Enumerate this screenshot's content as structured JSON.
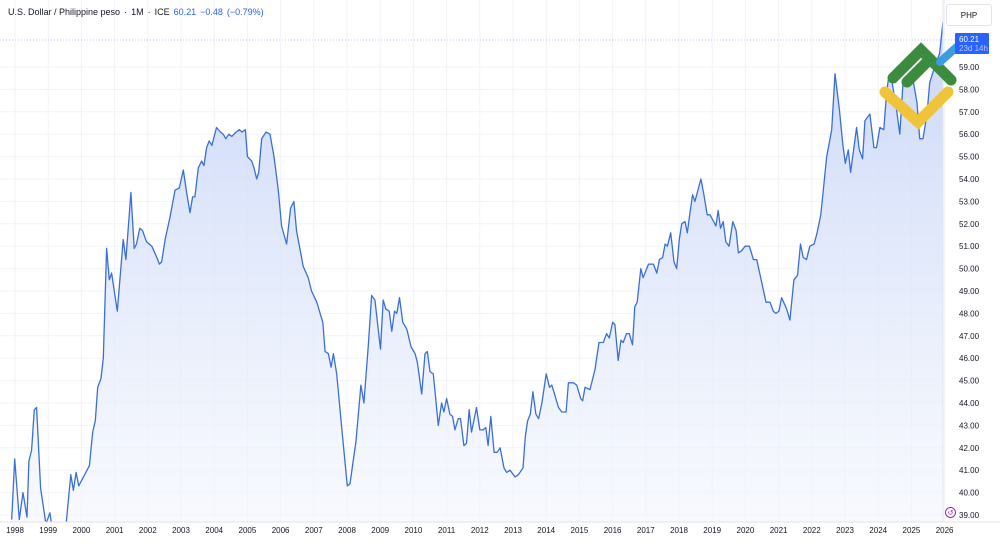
{
  "header": {
    "symbol_title": "U.S. Dollar / Philippine peso",
    "sep1": "·",
    "interval": "1M",
    "sep2": "·",
    "exchange": "ICE",
    "last_price": "60.21",
    "change": "−0.48",
    "change_pct": "(−0.79%)"
  },
  "price_scale": {
    "currency": "PHP",
    "last_price_label": "60.21",
    "countdown_label": "23d 14h"
  },
  "event_marker": {
    "icon": "dividend-event-icon",
    "glyph": "↺"
  },
  "colors": {
    "line": "#3a6fd8",
    "fill_top": "#c7d5f7",
    "fill_bottom": "#f3f6fd",
    "grid": "#f0f3fa",
    "accent": "#2962ff",
    "axis_text": "#131722",
    "logo_green": "#3b8c3e",
    "logo_yellow": "#f0c43a",
    "logo_blue": "#3d9be0"
  },
  "chart_data": {
    "type": "area",
    "title": "U.S. Dollar / Philippine peso · 1M · ICE",
    "xlabel": "",
    "ylabel": "PHP",
    "ylim": [
      38.6,
      61.2
    ],
    "grid": true,
    "legend_position": "top-left",
    "last_value": 60.21,
    "change": -0.48,
    "change_pct": -0.79,
    "x_ticks": [
      "1998",
      "1999",
      "2000",
      "2001",
      "2002",
      "2003",
      "2004",
      "2005",
      "2006",
      "2007",
      "2008",
      "2009",
      "2010",
      "2011",
      "2012",
      "2013",
      "2014",
      "2015",
      "2016",
      "2017",
      "2018",
      "2019",
      "2020",
      "2021",
      "2022",
      "2023",
      "2024",
      "2025",
      "2026"
    ],
    "y_ticks": [
      "39.00",
      "40.00",
      "41.00",
      "42.00",
      "43.00",
      "44.00",
      "45.00",
      "46.00",
      "47.00",
      "48.00",
      "49.00",
      "50.00",
      "51.00",
      "52.00",
      "53.00",
      "54.00",
      "55.00",
      "56.00",
      "57.00",
      "58.00",
      "59.00"
    ],
    "series": [
      {
        "name": "USD/PHP",
        "points": [
          [
            1997.9,
            38.8
          ],
          [
            1997.99,
            41.5
          ],
          [
            1998.13,
            38.8
          ],
          [
            1998.24,
            40.0
          ],
          [
            1998.36,
            38.9
          ],
          [
            1998.42,
            41.4
          ],
          [
            1998.5,
            41.9
          ],
          [
            1998.58,
            43.7
          ],
          [
            1998.65,
            43.8
          ],
          [
            1998.77,
            40.2
          ],
          [
            1998.93,
            38.6
          ],
          [
            1999.05,
            39.1
          ],
          [
            1999.1,
            38.6
          ],
          [
            1999.54,
            38.6
          ],
          [
            1999.68,
            40.8
          ],
          [
            1999.76,
            40.1
          ],
          [
            1999.84,
            40.9
          ],
          [
            1999.92,
            40.3
          ],
          [
            2000.24,
            41.2
          ],
          [
            2000.34,
            42.7
          ],
          [
            2000.42,
            43.2
          ],
          [
            2000.49,
            44.7
          ],
          [
            2000.59,
            45.1
          ],
          [
            2000.66,
            46.0
          ],
          [
            2000.76,
            50.9
          ],
          [
            2000.84,
            49.5
          ],
          [
            2000.91,
            49.8
          ],
          [
            2001.08,
            48.1
          ],
          [
            2001.26,
            51.3
          ],
          [
            2001.34,
            50.4
          ],
          [
            2001.49,
            53.4
          ],
          [
            2001.59,
            50.9
          ],
          [
            2001.66,
            51.1
          ],
          [
            2001.76,
            51.8
          ],
          [
            2001.84,
            51.7
          ],
          [
            2001.96,
            51.2
          ],
          [
            2002.12,
            51.0
          ],
          [
            2002.27,
            50.5
          ],
          [
            2002.35,
            50.2
          ],
          [
            2002.42,
            50.3
          ],
          [
            2002.52,
            51.3
          ],
          [
            2002.67,
            52.3
          ],
          [
            2002.82,
            53.5
          ],
          [
            2002.95,
            53.6
          ],
          [
            2003.07,
            54.4
          ],
          [
            2003.17,
            53.4
          ],
          [
            2003.27,
            52.5
          ],
          [
            2003.35,
            53.2
          ],
          [
            2003.42,
            53.2
          ],
          [
            2003.52,
            54.5
          ],
          [
            2003.62,
            54.8
          ],
          [
            2003.69,
            54.6
          ],
          [
            2003.77,
            55.4
          ],
          [
            2003.85,
            55.7
          ],
          [
            2003.93,
            55.5
          ],
          [
            2004.07,
            56.3
          ],
          [
            2004.19,
            56.1
          ],
          [
            2004.27,
            56.0
          ],
          [
            2004.35,
            55.8
          ],
          [
            2004.44,
            56.0
          ],
          [
            2004.53,
            55.9
          ],
          [
            2004.66,
            56.1
          ],
          [
            2004.76,
            56.2
          ],
          [
            2004.84,
            56.1
          ],
          [
            2004.94,
            56.2
          ],
          [
            2005.0,
            55.0
          ],
          [
            2005.13,
            54.8
          ],
          [
            2005.2,
            54.5
          ],
          [
            2005.28,
            54.0
          ],
          [
            2005.34,
            54.3
          ],
          [
            2005.43,
            55.8
          ],
          [
            2005.56,
            56.1
          ],
          [
            2005.68,
            56.0
          ],
          [
            2005.8,
            55.0
          ],
          [
            2005.93,
            53.5
          ],
          [
            2006.03,
            51.9
          ],
          [
            2006.18,
            51.1
          ],
          [
            2006.3,
            52.7
          ],
          [
            2006.4,
            53.0
          ],
          [
            2006.48,
            51.7
          ],
          [
            2006.68,
            50.1
          ],
          [
            2006.83,
            49.6
          ],
          [
            2006.93,
            49.0
          ],
          [
            2007.09,
            48.5
          ],
          [
            2007.27,
            47.6
          ],
          [
            2007.34,
            46.3
          ],
          [
            2007.44,
            46.2
          ],
          [
            2007.52,
            45.6
          ],
          [
            2007.59,
            46.2
          ],
          [
            2007.69,
            45.3
          ],
          [
            2007.84,
            42.9
          ],
          [
            2008.01,
            40.3
          ],
          [
            2008.09,
            40.4
          ],
          [
            2008.27,
            42.3
          ],
          [
            2008.42,
            44.8
          ],
          [
            2008.51,
            44.0
          ],
          [
            2008.64,
            46.5
          ],
          [
            2008.74,
            48.8
          ],
          [
            2008.84,
            48.6
          ],
          [
            2009.01,
            46.4
          ],
          [
            2009.09,
            48.6
          ],
          [
            2009.17,
            48.2
          ],
          [
            2009.27,
            48.1
          ],
          [
            2009.35,
            47.2
          ],
          [
            2009.43,
            48.1
          ],
          [
            2009.5,
            48.0
          ],
          [
            2009.58,
            48.7
          ],
          [
            2009.68,
            47.6
          ],
          [
            2009.8,
            47.3
          ],
          [
            2009.93,
            46.5
          ],
          [
            2010.05,
            46.2
          ],
          [
            2010.12,
            45.8
          ],
          [
            2010.25,
            44.4
          ],
          [
            2010.35,
            46.2
          ],
          [
            2010.42,
            46.3
          ],
          [
            2010.5,
            45.4
          ],
          [
            2010.6,
            45.3
          ],
          [
            2010.75,
            43.0
          ],
          [
            2010.85,
            44.0
          ],
          [
            2010.92,
            43.6
          ],
          [
            2011.0,
            44.2
          ],
          [
            2011.1,
            43.5
          ],
          [
            2011.18,
            43.4
          ],
          [
            2011.25,
            42.8
          ],
          [
            2011.35,
            43.3
          ],
          [
            2011.42,
            43.3
          ],
          [
            2011.52,
            42.1
          ],
          [
            2011.6,
            42.2
          ],
          [
            2011.68,
            43.7
          ],
          [
            2011.75,
            42.7
          ],
          [
            2011.9,
            43.8
          ],
          [
            2012.0,
            42.8
          ],
          [
            2012.1,
            42.8
          ],
          [
            2012.18,
            42.9
          ],
          [
            2012.25,
            42.1
          ],
          [
            2012.33,
            43.4
          ],
          [
            2012.43,
            41.8
          ],
          [
            2012.52,
            41.8
          ],
          [
            2012.61,
            42.0
          ],
          [
            2012.73,
            41.1
          ],
          [
            2012.81,
            40.9
          ],
          [
            2012.91,
            41.0
          ],
          [
            2013.06,
            40.7
          ],
          [
            2013.16,
            40.8
          ],
          [
            2013.3,
            41.1
          ],
          [
            2013.37,
            42.5
          ],
          [
            2013.44,
            43.2
          ],
          [
            2013.52,
            43.5
          ],
          [
            2013.6,
            44.5
          ],
          [
            2013.69,
            43.5
          ],
          [
            2013.77,
            43.3
          ],
          [
            2013.87,
            44.0
          ],
          [
            2014.0,
            45.3
          ],
          [
            2014.1,
            44.7
          ],
          [
            2014.17,
            44.8
          ],
          [
            2014.25,
            44.4
          ],
          [
            2014.37,
            43.8
          ],
          [
            2014.47,
            43.6
          ],
          [
            2014.6,
            43.6
          ],
          [
            2014.67,
            44.9
          ],
          [
            2014.82,
            44.9
          ],
          [
            2014.92,
            44.8
          ],
          [
            2015.04,
            44.2
          ],
          [
            2015.1,
            44.1
          ],
          [
            2015.17,
            44.7
          ],
          [
            2015.32,
            44.6
          ],
          [
            2015.47,
            45.5
          ],
          [
            2015.59,
            46.7
          ],
          [
            2015.72,
            46.7
          ],
          [
            2015.82,
            47.1
          ],
          [
            2015.9,
            46.9
          ],
          [
            2016.0,
            47.6
          ],
          [
            2016.07,
            47.5
          ],
          [
            2016.17,
            45.9
          ],
          [
            2016.25,
            46.8
          ],
          [
            2016.32,
            46.7
          ],
          [
            2016.42,
            47.1
          ],
          [
            2016.5,
            47.1
          ],
          [
            2016.6,
            46.6
          ],
          [
            2016.67,
            48.3
          ],
          [
            2016.74,
            48.5
          ],
          [
            2016.85,
            50.0
          ],
          [
            2016.92,
            49.6
          ],
          [
            2017.08,
            50.2
          ],
          [
            2017.23,
            50.2
          ],
          [
            2017.33,
            49.8
          ],
          [
            2017.41,
            50.4
          ],
          [
            2017.51,
            50.5
          ],
          [
            2017.58,
            51.1
          ],
          [
            2017.65,
            51.0
          ],
          [
            2017.75,
            51.6
          ],
          [
            2017.85,
            50.3
          ],
          [
            2017.93,
            50.0
          ],
          [
            2018.01,
            51.3
          ],
          [
            2018.08,
            52.0
          ],
          [
            2018.18,
            52.1
          ],
          [
            2018.25,
            51.6
          ],
          [
            2018.33,
            52.5
          ],
          [
            2018.41,
            53.3
          ],
          [
            2018.48,
            53.0
          ],
          [
            2018.66,
            54.0
          ],
          [
            2018.75,
            53.3
          ],
          [
            2018.85,
            52.4
          ],
          [
            2018.93,
            52.4
          ],
          [
            2019.01,
            52.2
          ],
          [
            2019.11,
            51.9
          ],
          [
            2019.18,
            52.6
          ],
          [
            2019.25,
            51.8
          ],
          [
            2019.33,
            52.1
          ],
          [
            2019.41,
            51.2
          ],
          [
            2019.51,
            51.0
          ],
          [
            2019.62,
            52.1
          ],
          [
            2019.72,
            51.7
          ],
          [
            2019.79,
            50.7
          ],
          [
            2019.89,
            50.8
          ],
          [
            2019.99,
            51.0
          ],
          [
            2020.12,
            51.0
          ],
          [
            2020.24,
            50.4
          ],
          [
            2020.34,
            50.4
          ],
          [
            2020.46,
            49.6
          ],
          [
            2020.62,
            48.5
          ],
          [
            2020.74,
            48.5
          ],
          [
            2020.84,
            48.1
          ],
          [
            2020.92,
            48.0
          ],
          [
            2021.01,
            48.1
          ],
          [
            2021.09,
            48.7
          ],
          [
            2021.24,
            48.2
          ],
          [
            2021.34,
            47.7
          ],
          [
            2021.46,
            49.5
          ],
          [
            2021.57,
            49.7
          ],
          [
            2021.66,
            51.1
          ],
          [
            2021.74,
            50.5
          ],
          [
            2021.84,
            50.4
          ],
          [
            2021.94,
            51.0
          ],
          [
            2022.07,
            51.1
          ],
          [
            2022.16,
            51.6
          ],
          [
            2022.27,
            52.4
          ],
          [
            2022.45,
            55.0
          ],
          [
            2022.6,
            56.2
          ],
          [
            2022.7,
            58.7
          ],
          [
            2022.83,
            57.1
          ],
          [
            2022.93,
            55.6
          ],
          [
            2023.01,
            54.7
          ],
          [
            2023.1,
            55.3
          ],
          [
            2023.17,
            54.3
          ],
          [
            2023.25,
            55.2
          ],
          [
            2023.35,
            56.3
          ],
          [
            2023.43,
            55.3
          ],
          [
            2023.53,
            54.9
          ],
          [
            2023.6,
            56.6
          ],
          [
            2023.75,
            56.9
          ],
          [
            2023.87,
            55.4
          ],
          [
            2023.95,
            55.4
          ],
          [
            2024.05,
            56.3
          ],
          [
            2024.17,
            56.2
          ],
          [
            2024.25,
            57.8
          ],
          [
            2024.3,
            58.4
          ],
          [
            2024.4,
            58.5
          ],
          [
            2024.55,
            57.1
          ],
          [
            2024.65,
            56.0
          ],
          [
            2024.75,
            58.4
          ],
          [
            2024.87,
            58.6
          ],
          [
            2024.95,
            58.2
          ],
          [
            2025.05,
            58.4
          ],
          [
            2025.17,
            57.4
          ],
          [
            2025.25,
            55.8
          ],
          [
            2025.35,
            55.8
          ],
          [
            2025.47,
            56.9
          ],
          [
            2025.55,
            58.3
          ],
          [
            2025.7,
            59.0
          ],
          [
            2025.85,
            59.6
          ],
          [
            2025.95,
            61.0
          ],
          [
            2026.05,
            60.21
          ]
        ]
      }
    ]
  }
}
